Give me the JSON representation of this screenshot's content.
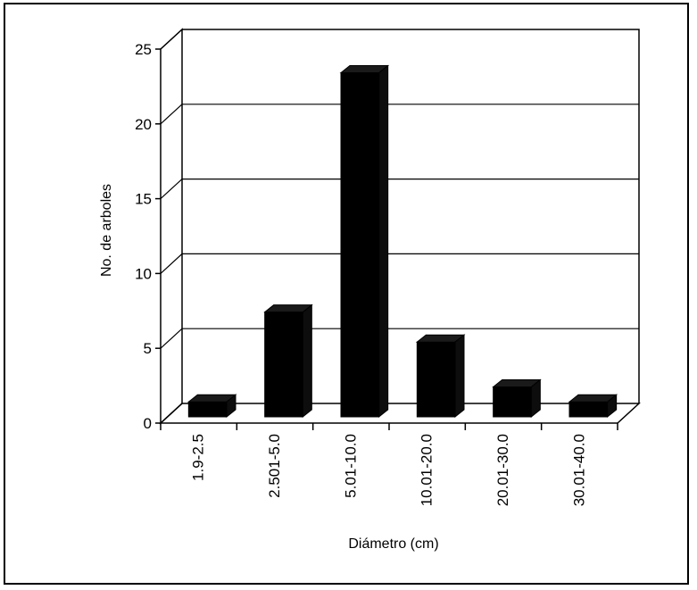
{
  "chart_data": {
    "type": "bar",
    "title": "",
    "xlabel": "Diámetro (cm)",
    "ylabel": "No. de arboles",
    "categories": [
      "1.9-2.5",
      "2.501-5.0",
      "5.01-10.0",
      "10.01-20.0",
      "20.01-30.0",
      "30.01-40.0"
    ],
    "values": [
      1,
      7,
      23,
      5,
      2,
      1
    ],
    "ylim": [
      0,
      25
    ],
    "yticks": [
      "0",
      "5",
      "10",
      "15",
      "20",
      "25"
    ],
    "grid": true,
    "style": "3d",
    "bar_color": "#000000"
  }
}
